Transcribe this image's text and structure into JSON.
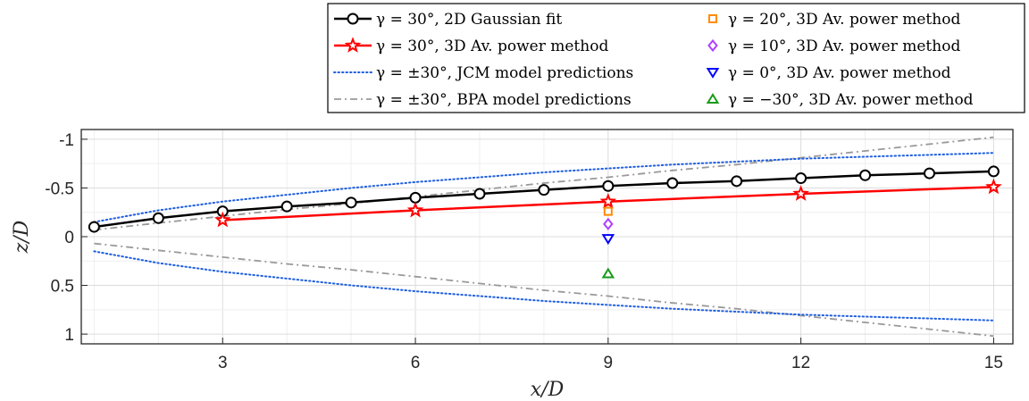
{
  "chart_data": {
    "type": "line",
    "xlabel": "x/D",
    "ylabel": "z/D",
    "xlim": [
      0.8,
      15.3
    ],
    "ylim": [
      1.1,
      -1.1
    ],
    "y_reversed": true,
    "grid": true,
    "x_ticks": [
      3,
      6,
      9,
      12,
      15
    ],
    "x_tick_labels": [
      "3",
      "6",
      "9",
      "12",
      "15"
    ],
    "y_ticks": [
      -1,
      -0.5,
      0,
      0.5,
      1
    ],
    "y_tick_labels": [
      "-1",
      "-0.5",
      "0",
      "0.5",
      "1"
    ],
    "legend_placement": "top-right, outside plot area",
    "legend_entries": [
      "γ = 30°, 2D Gaussian fit",
      "γ = 30°, 3D Av. power method",
      "γ = ±30°, JCM model predictions",
      "γ = ±30°, BPA model predictions",
      "γ = 20°, 3D Av. power method",
      "γ = 10°, 3D Av. power method",
      "γ = 0°, 3D Av. power method",
      "γ = −30°, 3D Av. power method"
    ],
    "series": [
      {
        "name": "γ = 30°, 2D Gaussian fit",
        "style": "solid-line-circle",
        "color": "#000000",
        "x": [
          1,
          2,
          3,
          4,
          5,
          6,
          7,
          8,
          9,
          10,
          11,
          12,
          13,
          14,
          15
        ],
        "y": [
          -0.1,
          -0.19,
          -0.26,
          -0.31,
          -0.35,
          -0.4,
          -0.44,
          -0.48,
          -0.52,
          -0.55,
          -0.57,
          -0.6,
          -0.63,
          -0.65,
          -0.67
        ]
      },
      {
        "name": "γ = 30°, 3D Av. power method",
        "style": "solid-line-star",
        "color": "#ff0000",
        "x": [
          3,
          6,
          9,
          12,
          15
        ],
        "y": [
          -0.17,
          -0.27,
          -0.36,
          -0.44,
          -0.51
        ]
      },
      {
        "name": "γ = ±30°, JCM model predictions",
        "style": "dotted",
        "color": "#1f5fe0",
        "x": [
          1,
          2,
          3,
          4,
          5,
          6,
          7,
          8,
          9,
          10,
          11,
          12,
          13,
          14,
          15
        ],
        "y": [
          -0.15,
          -0.27,
          -0.36,
          -0.43,
          -0.5,
          -0.56,
          -0.61,
          -0.66,
          -0.7,
          -0.74,
          -0.77,
          -0.8,
          -0.82,
          -0.84,
          -0.86
        ],
        "mirror_y": [
          0.15,
          0.27,
          0.36,
          0.43,
          0.5,
          0.56,
          0.61,
          0.66,
          0.7,
          0.74,
          0.77,
          0.8,
          0.82,
          0.84,
          0.86
        ]
      },
      {
        "name": "γ = ±30°, BPA model predictions",
        "style": "dashdot",
        "color": "#999999",
        "x": [
          1,
          2,
          3,
          4,
          5,
          6,
          7,
          8,
          9,
          10,
          11,
          12,
          13,
          14,
          15
        ],
        "y": [
          -0.07,
          -0.14,
          -0.21,
          -0.28,
          -0.34,
          -0.41,
          -0.48,
          -0.55,
          -0.61,
          -0.68,
          -0.74,
          -0.81,
          -0.88,
          -0.95,
          -1.02
        ],
        "mirror_y": [
          0.07,
          0.14,
          0.21,
          0.28,
          0.34,
          0.41,
          0.48,
          0.55,
          0.61,
          0.68,
          0.74,
          0.81,
          0.88,
          0.95,
          1.02
        ]
      },
      {
        "name": "γ = 20°, 3D Av. power method",
        "style": "square",
        "color": "#ff8c00",
        "x": [
          9
        ],
        "y": [
          -0.26
        ]
      },
      {
        "name": "γ = 10°, 3D Av. power method",
        "style": "diamond",
        "color": "#b040ff",
        "x": [
          9
        ],
        "y": [
          -0.13
        ]
      },
      {
        "name": "γ = 0°, 3D Av. power method",
        "style": "triangle-down",
        "color": "#0000ff",
        "x": [
          9
        ],
        "y": [
          0.02
        ]
      },
      {
        "name": "γ = −30°, 3D Av. power method",
        "style": "triangle-up",
        "color": "#1a9a1a",
        "x": [
          9
        ],
        "y": [
          0.38
        ]
      }
    ]
  }
}
